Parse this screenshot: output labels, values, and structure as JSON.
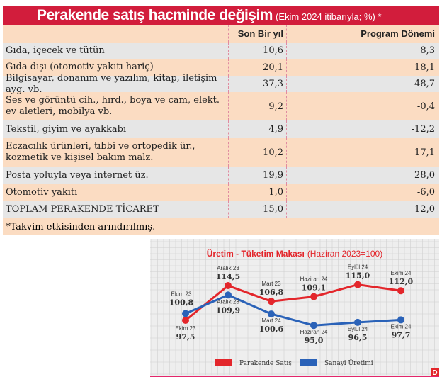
{
  "table": {
    "title": "Perakende satış hacminde değişim",
    "subtitle": "(Ekim 2024 itibarıyla; %) *",
    "columns": [
      "",
      "Son Bir yıl",
      "Program Dönemi"
    ],
    "rows": [
      {
        "label": "Gıda, içecek ve tütün",
        "v1": "10,6",
        "v2": "8,3"
      },
      {
        "label": "Gıda dışı (otomotiv yakıtı hariç)",
        "v1": "20,1",
        "v2": "18,1"
      },
      {
        "label": "Bilgisayar, donanım ve yazılım, kitap, iletişim ayg. vb.",
        "v1": "37,3",
        "v2": "48,7"
      },
      {
        "label": "Ses ve görüntü cih., hırd., boya ve cam, elekt. ev aletleri, mobilya vb.",
        "v1": "9,2",
        "v2": "-0,4"
      },
      {
        "label": "Tekstil, giyim ve ayakkabı",
        "v1": "4,9",
        "v2": "-12,2"
      },
      {
        "label": "Eczacılık ürünleri, tıbbi ve ortopedik ür., kozmetik ve kişisel bakım malz.",
        "v1": "10,2",
        "v2": "17,1"
      },
      {
        "label": "Posta yoluyla veya internet üz.",
        "v1": "19,9",
        "v2": "28,0"
      },
      {
        "label": "Otomotiv yakıtı",
        "v1": "1,0",
        "v2": "-6,0"
      },
      {
        "label": "TOPLAM PERAKENDE TİCARET",
        "v1": "15,0",
        "v2": "12,0"
      }
    ],
    "footnote": "*Takvim etkisinden arındırılmış."
  },
  "chart_data": {
    "type": "line",
    "title": "Üretim - Tüketim Makası",
    "subtitle": "(Haziran 2023=100)",
    "grid": true,
    "legend": "bottom",
    "series": [
      {
        "name": "Parakende Satış",
        "color": "#e3262b",
        "values": [
          97.5,
          114.5,
          106.8,
          109.1,
          115.0,
          112.0
        ],
        "labels": [
          "Ekim 23",
          "Aralık 23",
          "Mart 23",
          "Haziran 24",
          "Eylül 24",
          "Ekim 24"
        ],
        "value_labels": [
          "97,5",
          "114,5",
          "106,8",
          "109,1",
          "115,0",
          "112,0"
        ]
      },
      {
        "name": "Sanayi Üretimi",
        "color": "#2a62b8",
        "values": [
          100.8,
          109.9,
          100.6,
          95.0,
          96.5,
          97.7
        ],
        "labels": [
          "Ekim 23",
          "Aralık 23",
          "Mart 24",
          "Haziran 24",
          "Eylül 24",
          "Ekim 24"
        ],
        "value_labels": [
          "100,8",
          "109,9",
          "100,6",
          "95,0",
          "96,5",
          "97,7"
        ]
      }
    ],
    "logo": "D"
  }
}
